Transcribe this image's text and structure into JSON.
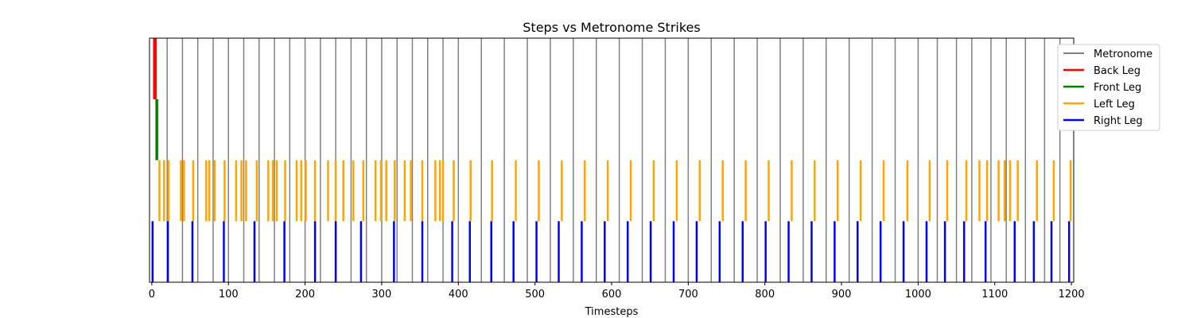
{
  "chart_data": {
    "type": "event-raster",
    "title": "Steps vs Metronome Strikes",
    "xlabel": "Timesteps",
    "ylabel": "",
    "xlim": [
      -3,
      1203
    ],
    "x_ticks": [
      0,
      100,
      200,
      300,
      400,
      500,
      600,
      700,
      800,
      900,
      1000,
      1100,
      1200
    ],
    "x_tick_labels": [
      "0",
      "100",
      "200",
      "300",
      "400",
      "500",
      "600",
      "700",
      "800",
      "900",
      "1000",
      "1100",
      "1200"
    ],
    "ylim": [
      0,
      4
    ],
    "legend_position": "top-right",
    "metronome": {
      "name": "Metronome",
      "color": "#808080",
      "band": [
        0,
        4
      ],
      "times": [
        20,
        40,
        60,
        80,
        100,
        120,
        140,
        160,
        180,
        200,
        220,
        240,
        260,
        280,
        300,
        320,
        340,
        360,
        380,
        400,
        430,
        460,
        490,
        520,
        550,
        580,
        610,
        640,
        670,
        700,
        730,
        760,
        790,
        820,
        850,
        880,
        910,
        940,
        970,
        1000,
        1025,
        1050,
        1070,
        1095,
        1115,
        1140,
        1165,
        1185
      ]
    },
    "series": [
      {
        "name": "Back Leg",
        "color": "#ff0000",
        "band": [
          3,
          4
        ],
        "times": [
          3,
          4,
          5
        ]
      },
      {
        "name": "Front Leg",
        "color": "#008000",
        "band": [
          2,
          3
        ],
        "times": [
          6,
          7
        ]
      },
      {
        "name": "Left Leg",
        "color": "#ffa500",
        "band": [
          1,
          2
        ],
        "times": [
          10,
          16,
          22,
          38,
          42,
          54,
          71,
          75,
          82,
          95,
          110,
          117,
          123,
          137,
          152,
          158,
          163,
          174,
          189,
          195,
          201,
          213,
          230,
          240,
          250,
          263,
          276,
          292,
          299,
          306,
          317,
          330,
          338,
          353,
          370,
          376,
          380,
          394,
          416,
          444,
          475,
          505,
          535,
          565,
          595,
          625,
          655,
          685,
          715,
          745,
          775,
          805,
          835,
          865,
          895,
          925,
          955,
          986,
          1015,
          1038,
          1063,
          1080,
          1090,
          1105,
          1113,
          1120,
          1130,
          1155,
          1177,
          1199
        ]
      },
      {
        "name": "Right Leg",
        "color": "#0000ff",
        "band": [
          0,
          1
        ],
        "times": [
          1,
          21,
          53,
          94,
          134,
          173,
          213,
          240,
          273,
          316,
          353,
          392,
          415,
          443,
          472,
          502,
          531,
          561,
          591,
          621,
          651,
          681,
          711,
          741,
          771,
          801,
          831,
          861,
          891,
          921,
          951,
          981,
          1011,
          1035,
          1060,
          1088,
          1126,
          1151,
          1174,
          1197
        ]
      }
    ]
  }
}
